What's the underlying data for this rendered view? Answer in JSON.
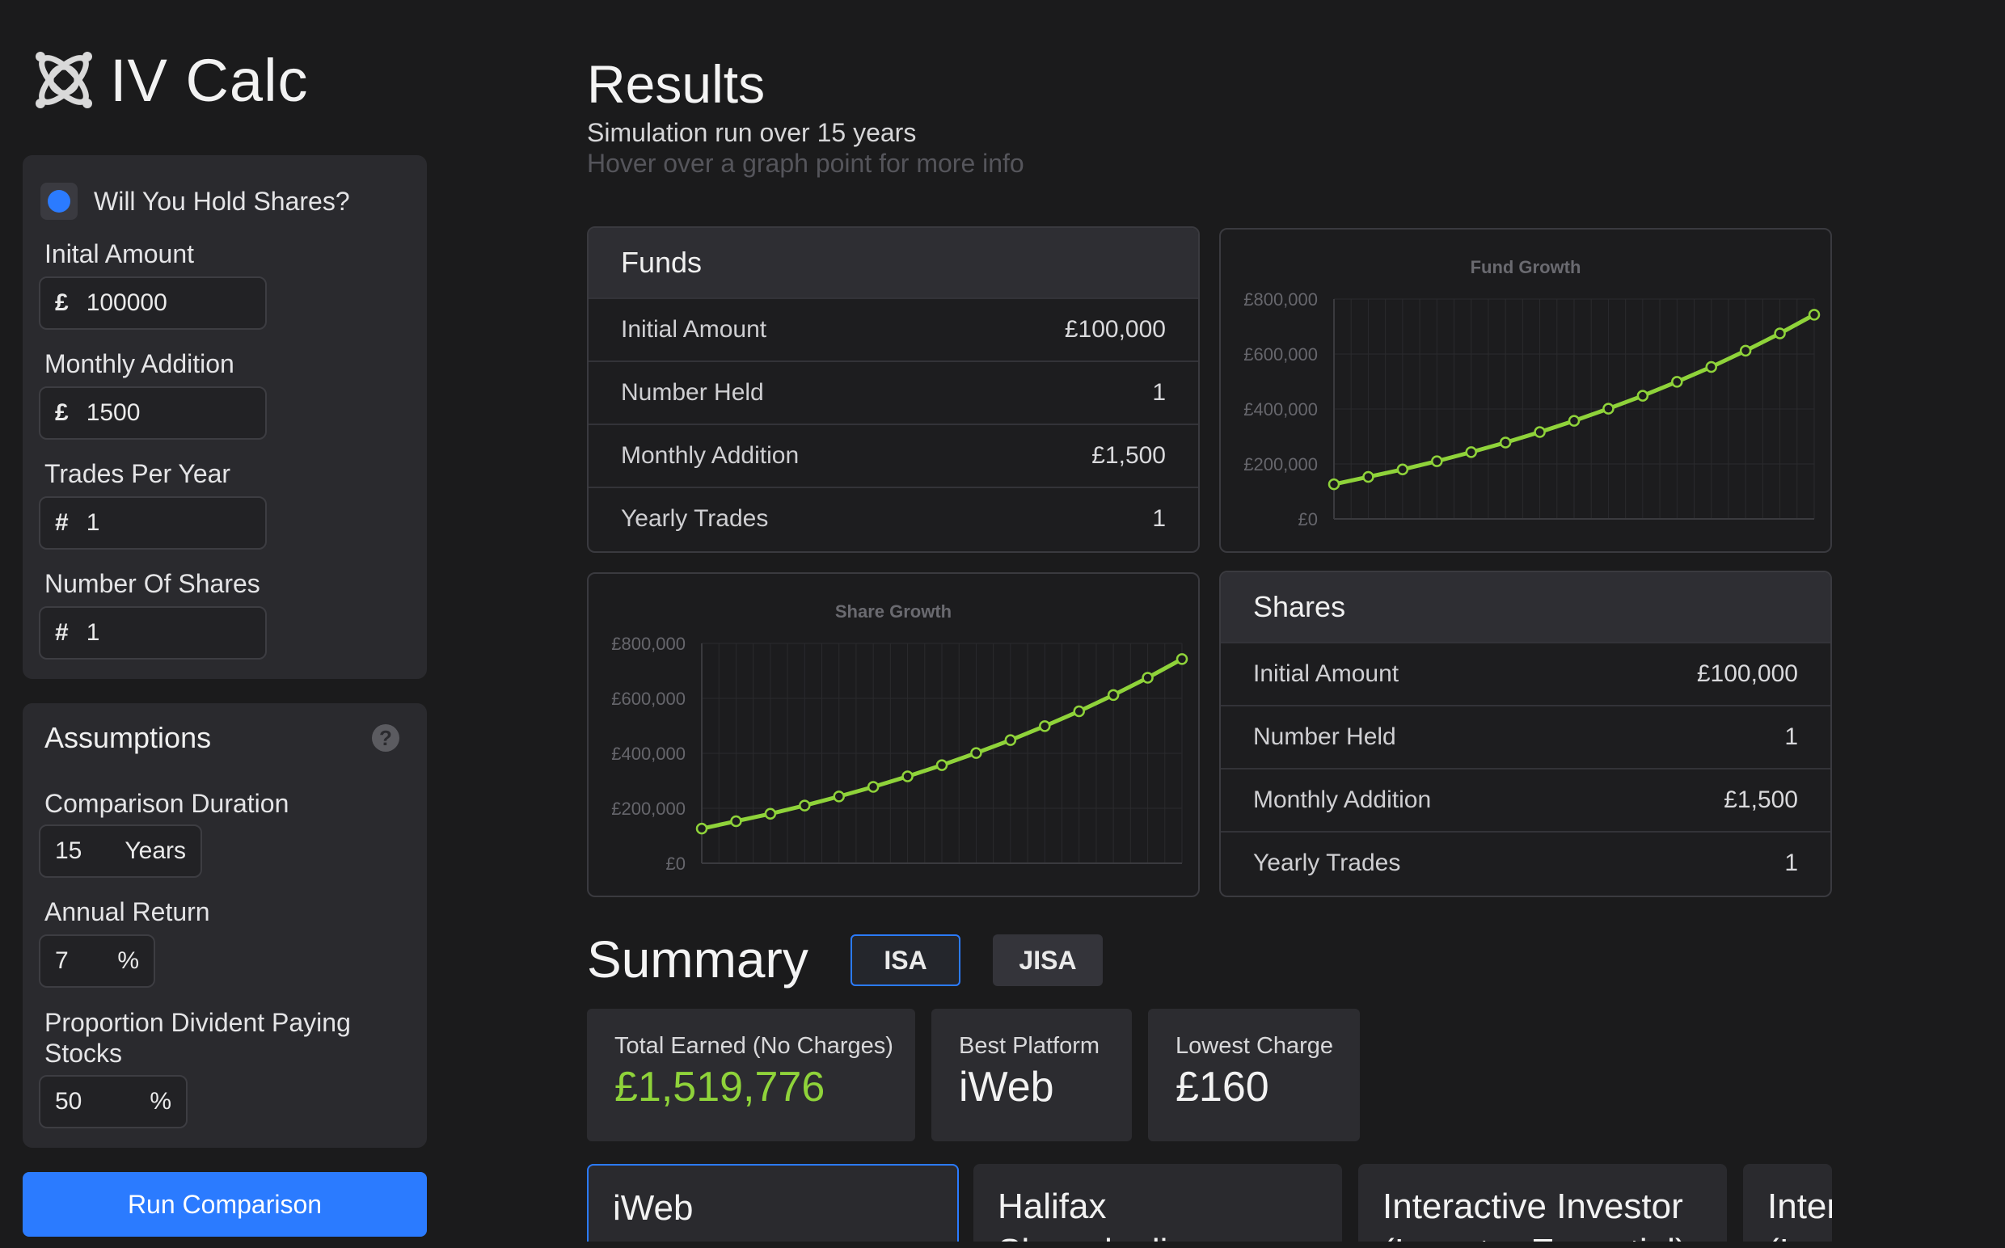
{
  "app": {
    "logo_text": "IV Calc"
  },
  "sidebar": {
    "hold_shares_label": "Will You Hold Shares?",
    "fields": [
      {
        "label": "Inital Amount",
        "prefix": "£",
        "value": "100000"
      },
      {
        "label": "Monthly Addition",
        "prefix": "£",
        "value": "1500"
      },
      {
        "label": "Trades Per Year",
        "prefix": "#",
        "value": "1"
      },
      {
        "label": "Number Of Shares",
        "prefix": "#",
        "value": "1"
      }
    ],
    "assumptions": {
      "title": "Assumptions",
      "help": "?",
      "duration": {
        "label": "Comparison Duration",
        "value": "15",
        "suffix": "Years"
      },
      "annual_return": {
        "label": "Annual Return",
        "value": "7",
        "suffix": "%"
      },
      "dividend": {
        "label": "Proportion Divident Paying Stocks",
        "value": "50",
        "suffix": "%"
      }
    },
    "run_button": "Run Comparison"
  },
  "results": {
    "title": "Results",
    "subtitle": "Simulation run over 15 years",
    "hint": "Hover over a graph point for more info"
  },
  "funds_table": {
    "title": "Funds",
    "rows": [
      {
        "label": "Initial Amount",
        "value": "£100,000"
      },
      {
        "label": "Number Held",
        "value": "1"
      },
      {
        "label": "Monthly Addition",
        "value": "£1,500"
      },
      {
        "label": "Yearly Trades",
        "value": "1"
      }
    ]
  },
  "shares_table": {
    "title": "Shares",
    "rows": [
      {
        "label": "Initial Amount",
        "value": "£100,000"
      },
      {
        "label": "Number Held",
        "value": "1"
      },
      {
        "label": "Monthly Addition",
        "value": "£1,500"
      },
      {
        "label": "Yearly Trades",
        "value": "1"
      }
    ]
  },
  "chart_data": [
    {
      "type": "line",
      "title": "Fund Growth",
      "xlabel": "",
      "ylabel": "",
      "ylim": [
        0,
        800000
      ],
      "yticks": [
        "£0",
        "£200,000",
        "£400,000",
        "£600,000",
        "£800,000"
      ],
      "grid": true,
      "color": "#8fd33a",
      "values": [
        126000,
        153000,
        180000,
        210000,
        243000,
        278000,
        316000,
        357000,
        401000,
        448000,
        499000,
        553000,
        612000,
        675000,
        743000
      ]
    },
    {
      "type": "line",
      "title": "Share Growth",
      "xlabel": "",
      "ylabel": "",
      "ylim": [
        0,
        800000
      ],
      "yticks": [
        "£0",
        "£200,000",
        "£400,000",
        "£600,000",
        "£800,000"
      ],
      "grid": true,
      "color": "#8fd33a",
      "values": [
        126000,
        153000,
        180000,
        210000,
        243000,
        278000,
        316000,
        357000,
        401000,
        448000,
        499000,
        553000,
        612000,
        675000,
        743000
      ]
    }
  ],
  "summary": {
    "title": "Summary",
    "tabs": [
      "ISA",
      "JISA"
    ],
    "stats": [
      {
        "label": "Total Earned (No Charges)",
        "value": "£1,519,776"
      },
      {
        "label": "Best Platform",
        "value": "iWeb"
      },
      {
        "label": "Lowest Charge",
        "value": "£160"
      }
    ],
    "platforms": [
      {
        "name": "iWeb",
        "sub": ""
      },
      {
        "name": "Halifax",
        "sub": "Sharedealing"
      },
      {
        "name": "Interactive Investor",
        "sub": "(Investor Essential)"
      },
      {
        "name": "Inter",
        "sub": "(I"
      }
    ]
  }
}
